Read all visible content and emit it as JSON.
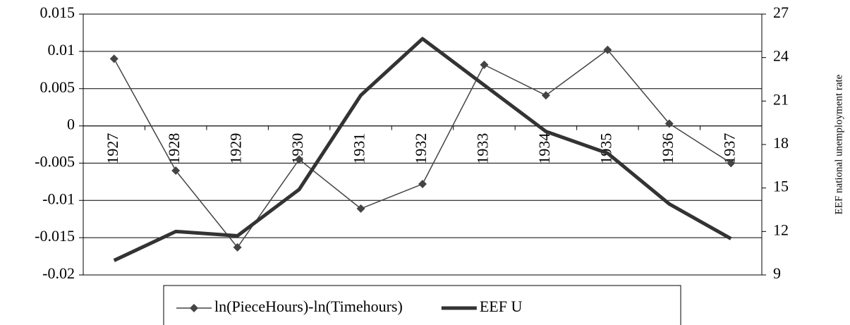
{
  "chart_data": {
    "type": "line",
    "categories": [
      "1927",
      "1928",
      "1929",
      "1930",
      "1931",
      "1932",
      "1933",
      "1934",
      "1935",
      "1936",
      "1937"
    ],
    "series": [
      {
        "name": "ln(PieceHours)-ln(Timehours)",
        "color": "#444444",
        "marker": "diamond",
        "values": [
          0.009,
          -0.006,
          -0.0163,
          -0.0045,
          -0.0111,
          -0.0078,
          0.0082,
          0.0041,
          0.0102,
          0.0003,
          -0.005
        ]
      },
      {
        "name": "EEF U",
        "color": "#333333",
        "axis": "y2",
        "values": [
          10.0,
          12.0,
          11.7,
          14.9,
          21.4,
          25.3,
          22.1,
          18.9,
          17.4,
          13.9,
          11.5
        ]
      }
    ],
    "ylim": [
      -0.02,
      0.015
    ],
    "yticks": [
      0.015,
      0.01,
      0.005,
      0,
      -0.005,
      -0.01,
      -0.015,
      -0.02
    ],
    "y2lim": [
      9,
      27
    ],
    "y2ticks": [
      27,
      24,
      21,
      18,
      15,
      12,
      9
    ],
    "y2label": "EEF national unemployment rate",
    "grid": true,
    "legend": "bottom"
  }
}
